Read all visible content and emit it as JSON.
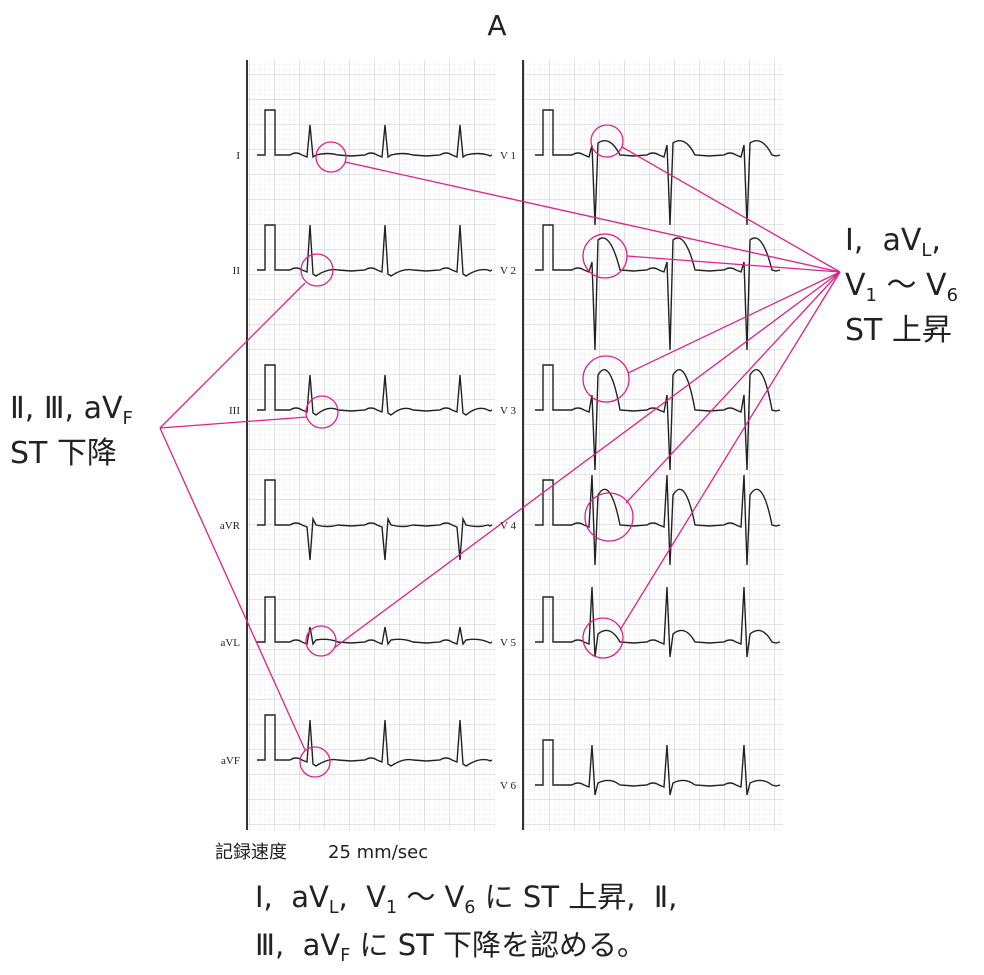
{
  "title": "A",
  "leads_left": [
    "I",
    "II",
    "III",
    "aVR",
    "aVL",
    "aVF"
  ],
  "leads_right": [
    "V 1",
    "V 2",
    "V 3",
    "V 4",
    "V 5",
    "V 6"
  ],
  "annotation_right": [
    [
      {
        "text": "I,  aV"
      },
      {
        "text": "L",
        "sub": true
      },
      {
        "text": ","
      }
    ],
    [
      {
        "text": "V"
      },
      {
        "text": "1",
        "sub": true
      },
      {
        "text": " 〜 V"
      },
      {
        "text": "6",
        "sub": true
      }
    ],
    [
      {
        "text": "ST 上昇"
      }
    ]
  ],
  "annotation_left": [
    [
      {
        "text": "Ⅱ, Ⅲ, aV"
      },
      {
        "text": "F",
        "sub": true
      }
    ],
    [
      {
        "text": "ST 下降"
      }
    ]
  ],
  "speed_label": "記録速度",
  "speed_value": "25 mm/sec",
  "caption": [
    [
      {
        "text": "I,  aV"
      },
      {
        "text": "L",
        "sub": true
      },
      {
        "text": ",  V"
      },
      {
        "text": "1",
        "sub": true
      },
      {
        "text": " 〜 V"
      },
      {
        "text": "6",
        "sub": true
      },
      {
        "text": " に ST 上昇,  Ⅱ,"
      }
    ],
    [
      {
        "text": "Ⅲ,  aV"
      },
      {
        "text": "F",
        "sub": true
      },
      {
        "text": " に ST 下降を認める。"
      }
    ]
  ]
}
